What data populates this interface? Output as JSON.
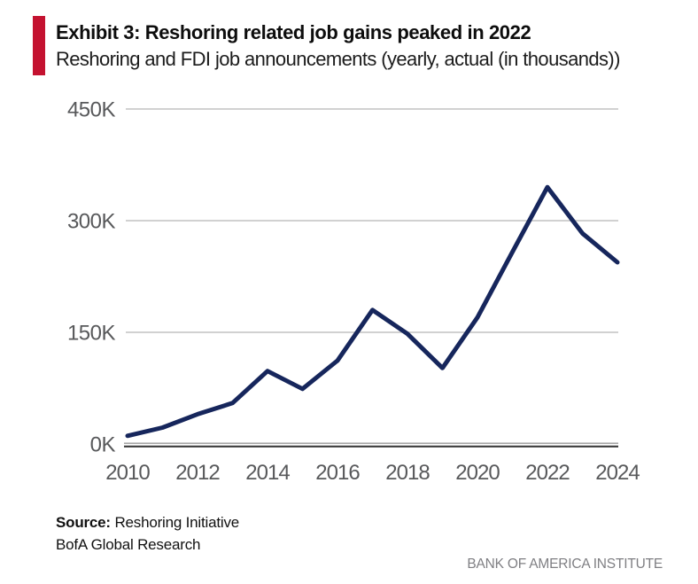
{
  "header": {
    "exhibit_title": "Exhibit 3: Reshoring related job gains peaked in 2022",
    "subtitle": "Reshoring and FDI job announcements (yearly, actual (in thousands))",
    "accent_color": "#C41230"
  },
  "chart_data": {
    "type": "line",
    "title": "Exhibit 3: Reshoring related job gains peaked in 2022",
    "subtitle": "Reshoring and FDI job announcements (yearly, actual (in thousands))",
    "series_name": "Reshoring and FDI job announcements (thousands)",
    "x": [
      2010,
      2011,
      2012,
      2013,
      2014,
      2015,
      2016,
      2017,
      2018,
      2019,
      2020,
      2021,
      2022,
      2023,
      2024
    ],
    "values": [
      11,
      22,
      40,
      55,
      98,
      74,
      112,
      180,
      148,
      102,
      170,
      258,
      345,
      283,
      244
    ],
    "unit": "K",
    "xlim": [
      2010,
      2024
    ],
    "ylim": [
      0,
      450
    ],
    "xticks": [
      2010,
      2012,
      2014,
      2016,
      2018,
      2020,
      2022,
      2024
    ],
    "yticks": [
      0,
      150,
      300,
      450
    ],
    "ytick_labels": [
      "0K",
      "150K",
      "300K",
      "450K"
    ],
    "grid": "horizontal",
    "legend": "none",
    "line_color": "#16265C",
    "gridline_color": "#c2c2c2",
    "axis_color": "#3b3b3b",
    "tick_label_color": "#58595b"
  },
  "footer": {
    "source_label": "Source:",
    "source_value": "Reshoring Initiative",
    "source_line2": "BofA Global Research",
    "branding": "BANK OF AMERICA INSTITUTE"
  }
}
